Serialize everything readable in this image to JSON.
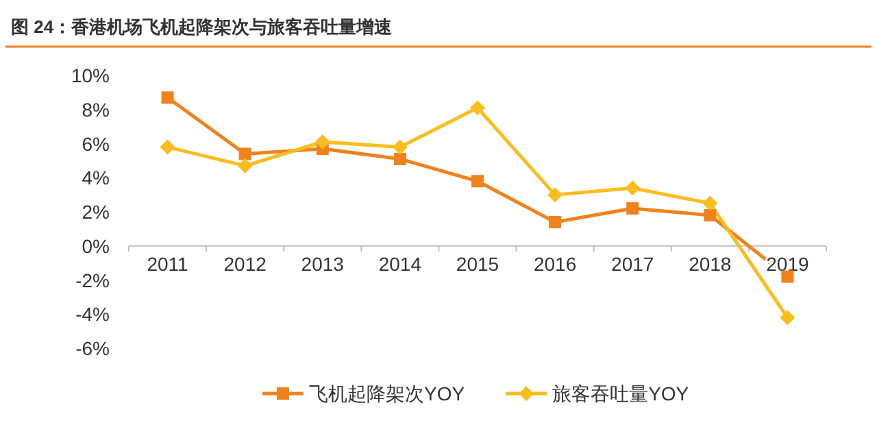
{
  "chart_data": {
    "type": "line",
    "title": "图 24：香港机场飞机起降架次与旅客吞吐量增速",
    "categories": [
      "2011",
      "2012",
      "2013",
      "2014",
      "2015",
      "2016",
      "2017",
      "2018",
      "2019"
    ],
    "series": [
      {
        "name": "飞机起降架次YOY",
        "color": "#f0821e",
        "marker": "square",
        "values": [
          8.7,
          5.4,
          5.7,
          5.1,
          3.8,
          1.4,
          2.2,
          1.8,
          -1.8
        ]
      },
      {
        "name": "旅客吞吐量YOY",
        "color": "#fbbd1e",
        "marker": "diamond",
        "values": [
          5.8,
          4.7,
          6.1,
          5.8,
          8.1,
          3.0,
          3.4,
          2.5,
          -4.2
        ]
      }
    ],
    "ylim": [
      -6,
      10
    ],
    "yticks": [
      {
        "value": 10,
        "label": "10%"
      },
      {
        "value": 8,
        "label": "8%"
      },
      {
        "value": 6,
        "label": "6%"
      },
      {
        "value": 4,
        "label": "4%"
      },
      {
        "value": 2,
        "label": "2%"
      },
      {
        "value": 0,
        "label": "0%"
      },
      {
        "value": -2,
        "label": "-2%"
      },
      {
        "value": -4,
        "label": "-4%"
      },
      {
        "value": -6,
        "label": "-6%"
      }
    ],
    "grid": false,
    "legend": "bottom"
  }
}
